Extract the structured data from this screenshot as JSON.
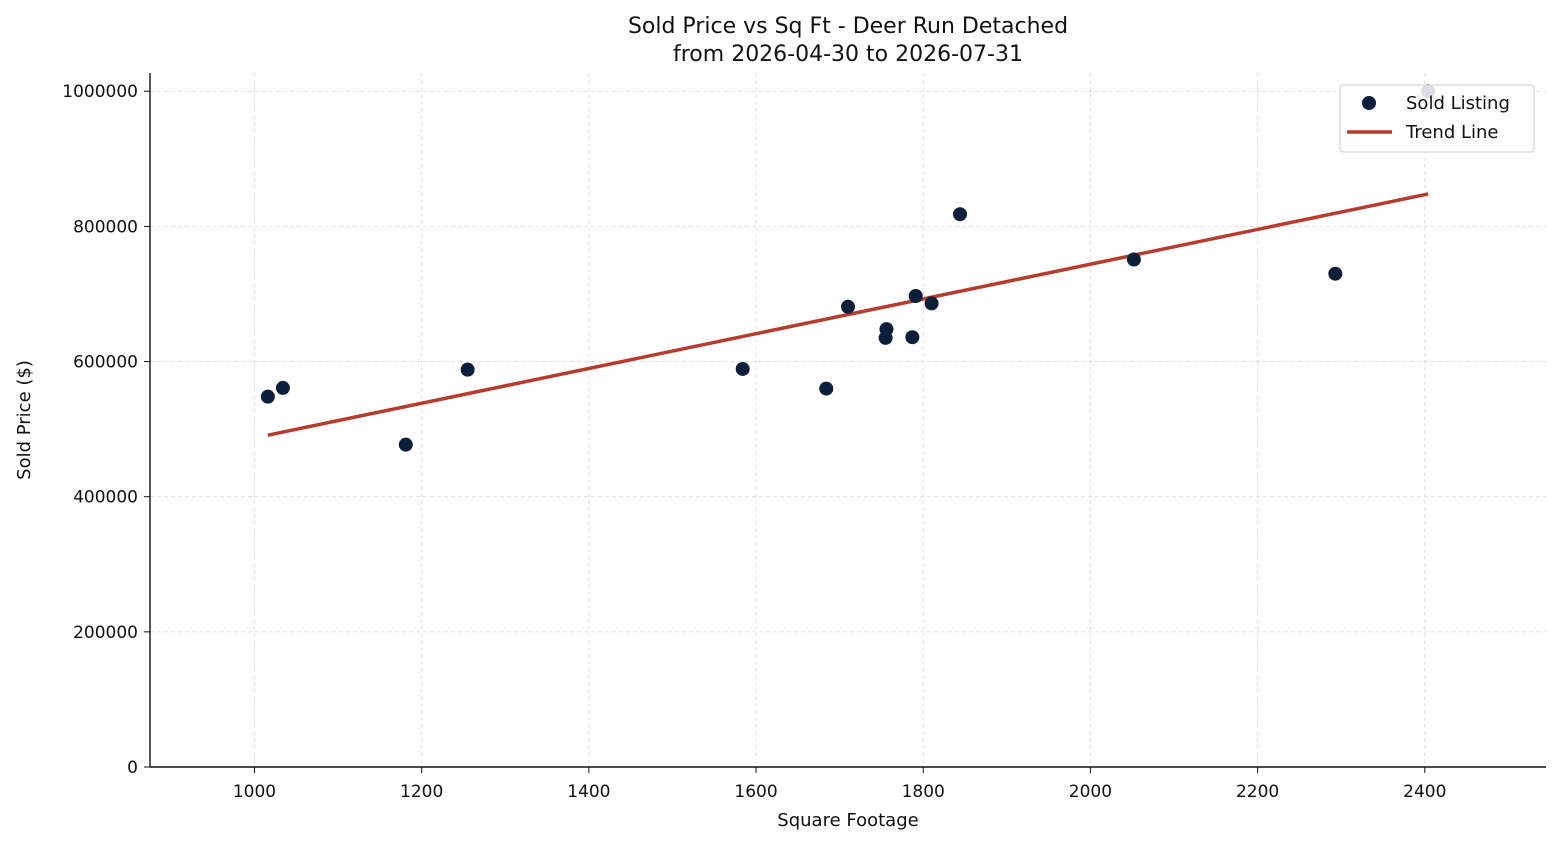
{
  "chart_data": {
    "type": "scatter",
    "title_line1": "Sold Price vs Sq Ft - Deer Run Detached",
    "title_line2": "from 2026-04-30 to 2026-07-31",
    "xlabel": "Square Footage",
    "ylabel": "Sold Price ($)",
    "xlim": [
      875,
      2545
    ],
    "ylim": [
      0,
      1027000
    ],
    "xticks": [
      1000,
      1200,
      1400,
      1600,
      1800,
      2000,
      2200,
      2400
    ],
    "yticks": [
      0,
      200000,
      400000,
      600000,
      800000,
      1000000
    ],
    "grid": true,
    "legend_position": "top-right",
    "legend": {
      "scatter_label": "Sold Listing",
      "line_label": "Trend Line"
    },
    "colors": {
      "points": "#0b1f3a",
      "trend": "#b83c2e",
      "grid": "#d9d9d9",
      "axis": "#111111"
    },
    "series": [
      {
        "name": "Sold Listing",
        "kind": "scatter",
        "points": [
          {
            "x": 1016,
            "y": 548000
          },
          {
            "x": 1034,
            "y": 561000
          },
          {
            "x": 1181,
            "y": 477000
          },
          {
            "x": 1255,
            "y": 588000
          },
          {
            "x": 1584,
            "y": 589000
          },
          {
            "x": 1684,
            "y": 560000
          },
          {
            "x": 1710,
            "y": 681000
          },
          {
            "x": 1756,
            "y": 648000
          },
          {
            "x": 1755,
            "y": 635000
          },
          {
            "x": 1787,
            "y": 636000
          },
          {
            "x": 1791,
            "y": 697000
          },
          {
            "x": 1810,
            "y": 686000
          },
          {
            "x": 1844,
            "y": 818000
          },
          {
            "x": 2052,
            "y": 751000
          },
          {
            "x": 2293,
            "y": 730000
          },
          {
            "x": 2404,
            "y": 1000000
          }
        ]
      },
      {
        "name": "Trend Line",
        "kind": "line",
        "points": [
          {
            "x": 1016,
            "y": 491000
          },
          {
            "x": 2404,
            "y": 848000
          }
        ]
      }
    ]
  }
}
